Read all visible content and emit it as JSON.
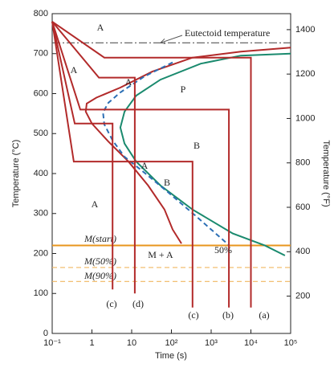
{
  "chart_data": {
    "type": "line",
    "xlabel": "Time (s)",
    "ylabel": "Temperature (°C)",
    "y2label": "Temperature (°F)",
    "xscale": "log",
    "xlim": [
      0.1,
      100000
    ],
    "ylim": [
      0,
      800
    ],
    "y2lim": [
      32,
      1472
    ],
    "xticks": [
      {
        "value": 0.1,
        "label": "10⁻¹"
      },
      1,
      10,
      {
        "value": 100,
        "label": "10²"
      },
      {
        "value": 1000,
        "label": "10³"
      },
      {
        "value": 10000,
        "label": "10⁴"
      },
      {
        "value": 100000,
        "label": "10⁵"
      }
    ],
    "yticks": [
      0,
      100,
      200,
      300,
      400,
      500,
      600,
      700,
      800
    ],
    "y2ticks": [
      200,
      400,
      600,
      800,
      1000,
      1200,
      1400
    ],
    "series": [
      {
        "color": "#b22a2a",
        "dash": "solid",
        "x": [
          100000,
          5600,
          340,
          33,
          5.2,
          1.3,
          0.74,
          0.7,
          1,
          2.6,
          8.3,
          26,
          67,
          107,
          179
        ],
        "values": [
          715,
          705,
          690,
          655,
          615,
          590,
          575,
          555,
          525,
          480,
          430,
          370,
          310,
          260,
          225
        ]
      },
      {
        "color": "#1a8a6e",
        "dash": "solid",
        "x": [
          100000,
          5600,
          550,
          53,
          13,
          6.6,
          5.2,
          6.6,
          13,
          53,
          340,
          3500,
          22600,
          72000
        ],
        "values": [
          700,
          695,
          675,
          635,
          595,
          555,
          515,
          475,
          430,
          370,
          310,
          250,
          220,
          195
        ]
      },
      {
        "color": "#2c6fb5",
        "dash": "dashed",
        "x": [
          107,
          21,
          5.2,
          2.6,
          1.9,
          2.05,
          3.3,
          6.6,
          21,
          85,
          430,
          2800
        ],
        "values": [
          678,
          643,
          603,
          577,
          553,
          523,
          483,
          442,
          402,
          352,
          292,
          221
        ]
      },
      {
        "color": "#b22a2a",
        "dash": "solid",
        "x": [
          0.1,
          2.05,
          10000,
          10000
        ],
        "values": [
          780,
          690,
          690,
          65
        ]
      },
      {
        "color": "#b22a2a",
        "dash": "solid",
        "x": [
          0.1,
          0.51,
          2800,
          2800
        ],
        "values": [
          780,
          560,
          560,
          65
        ]
      },
      {
        "color": "#b22a2a",
        "dash": "solid",
        "x": [
          0.1,
          0.35,
          340,
          340
        ],
        "values": [
          780,
          430,
          430,
          65
        ]
      },
      {
        "color": "#b22a2a",
        "dash": "solid",
        "x": [
          0.1,
          0.37,
          3.3,
          3.3
        ],
        "values": [
          780,
          525,
          525,
          110
        ]
      },
      {
        "color": "#b22a2a",
        "dash": "solid",
        "x": [
          0.1,
          1.5,
          12,
          12
        ],
        "values": [
          780,
          640,
          640,
          100
        ]
      }
    ],
    "hlines": [
      {
        "label": "Eutectoid temperature",
        "value": 727,
        "color": "#555",
        "dash": "dashdot"
      },
      {
        "label": "M(start)",
        "value": 220,
        "color": "#e8961e",
        "dash": "solid"
      },
      {
        "label": "M(50%)",
        "value": 165,
        "color": "#f0b860",
        "dash": "dashed"
      },
      {
        "label": "M(90%)",
        "value": 130,
        "color": "#f0b860",
        "dash": "dashed"
      }
    ],
    "annotations": [
      "A",
      "A",
      "A",
      "P",
      "B",
      "A",
      "B",
      "A",
      "M + A",
      "50%",
      "(c)",
      "(d)",
      "(c)",
      "(b)",
      "(a)"
    ]
  }
}
